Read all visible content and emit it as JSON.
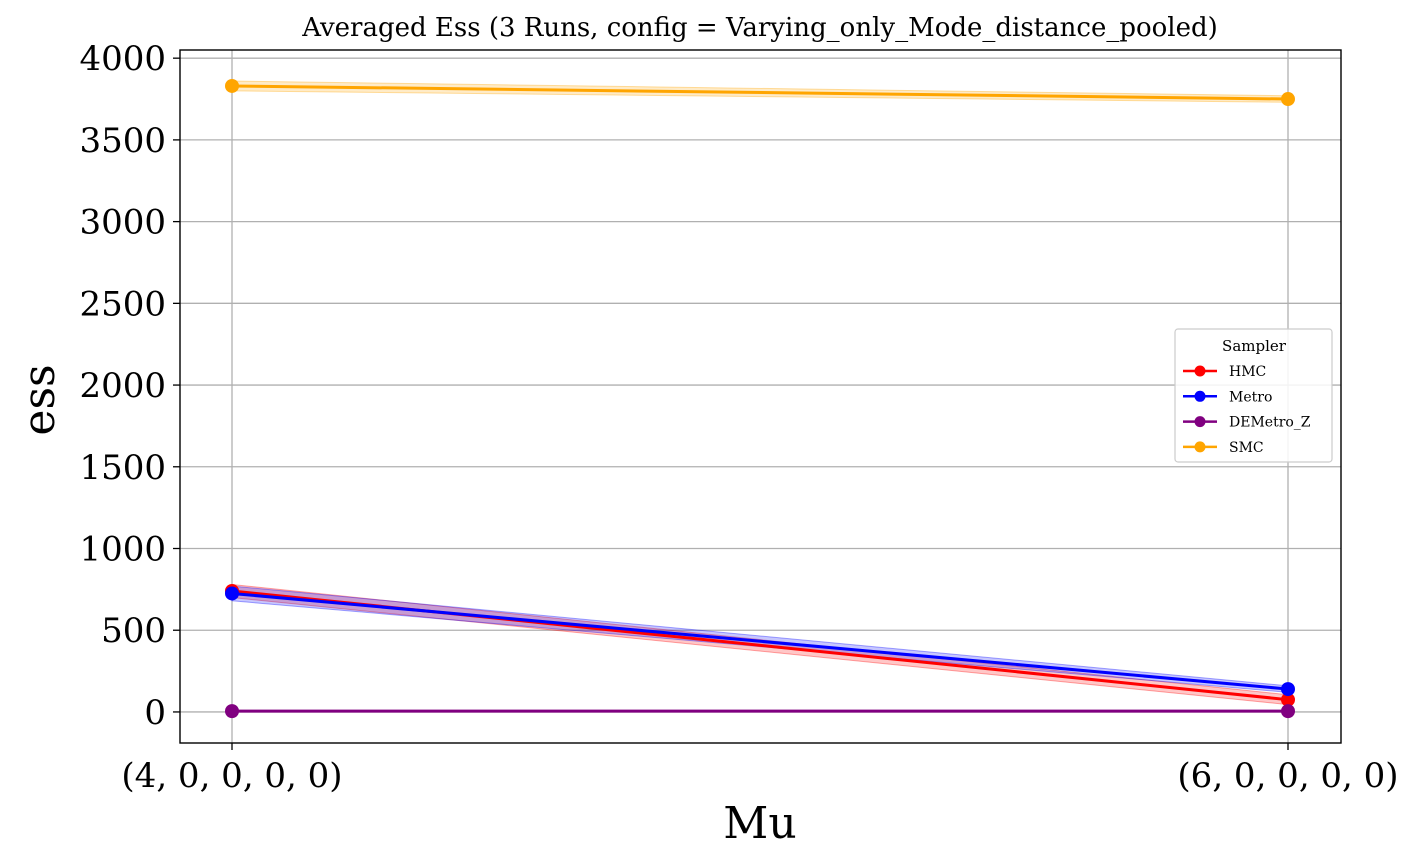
{
  "chart_data": {
    "type": "line",
    "title": "Averaged Ess (3 Runs, config = Varying_only_Mode_distance_pooled)",
    "xlabel": "Mu",
    "ylabel": "ess",
    "categories": [
      "(4, 0, 0, 0, 0)",
      "(6, 0, 0, 0, 0)"
    ],
    "ylim": [
      -190,
      4050
    ],
    "yticks": [
      0,
      500,
      1000,
      1500,
      2000,
      2500,
      3000,
      3500,
      4000
    ],
    "grid": true,
    "legend": {
      "title": "Sampler",
      "position": "center-right"
    },
    "series": [
      {
        "name": "HMC",
        "color": "#ff0000",
        "values": [
          740,
          75
        ],
        "band": [
          [
            700,
            780
          ],
          [
            45,
            105
          ]
        ]
      },
      {
        "name": "Metro",
        "color": "#0000ff",
        "values": [
          725,
          140
        ],
        "band": [
          [
            680,
            770
          ],
          [
            120,
            160
          ]
        ]
      },
      {
        "name": "DEMetro_Z",
        "color": "#800080",
        "values": [
          5,
          5
        ],
        "band": [
          [
            0,
            10
          ],
          [
            0,
            10
          ]
        ]
      },
      {
        "name": "SMC",
        "color": "#ffa500",
        "values": [
          3830,
          3750
        ],
        "band": [
          [
            3800,
            3860
          ],
          [
            3730,
            3770
          ]
        ]
      }
    ]
  }
}
